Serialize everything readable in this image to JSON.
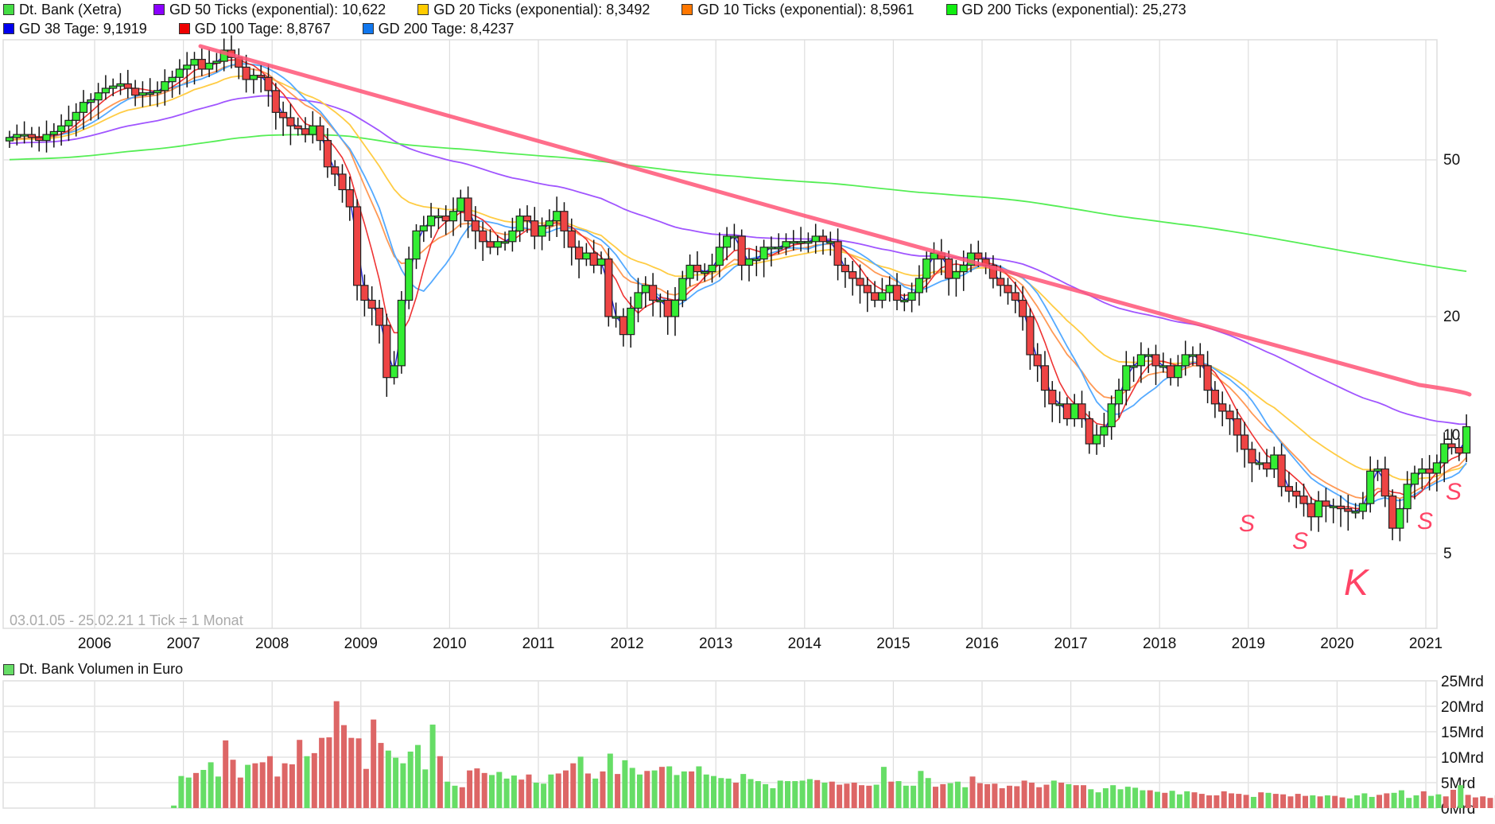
{
  "legend": {
    "row1": [
      {
        "label": "Dt. Bank (Xetra)",
        "color": "#44dd44"
      },
      {
        "label": "GD 50 Ticks (exponential): 10,622",
        "color": "#8a00ff"
      },
      {
        "label": "GD 20 Ticks (exponential): 8,3492",
        "color": "#ffcc00"
      },
      {
        "label": "GD 10 Ticks (exponential): 8,5961",
        "color": "#ff7700"
      },
      {
        "label": "GD 200 Ticks (exponential): 25,273",
        "color": "#11ee11"
      }
    ],
    "row2": [
      {
        "label": "GD 38 Tage: 9,1919",
        "color": "#0000ee"
      },
      {
        "label": "GD 100 Tage: 8,8767",
        "color": "#ee0000"
      },
      {
        "label": "GD 200 Tage: 8,4237",
        "color": "#1177ee"
      }
    ]
  },
  "info": {
    "range": "03.01.05 - 25.02.21",
    "tick": "1 Tick = 1 Monat"
  },
  "volume_legend": {
    "label": "Dt. Bank Volumen in Euro",
    "color": "#66dd66"
  },
  "annotations": {
    "support_marks": [
      "S",
      "S",
      "S",
      "S"
    ],
    "crash_mark": "K",
    "trendline_color": "#ff5577"
  },
  "chart_data": [
    {
      "type": "candlestick",
      "title": "Dt. Bank (Xetra)",
      "subtitle": "03.01.05 - 25.02.21, 1 Tick = 1 Monat",
      "xlabel": "",
      "ylabel": "",
      "yscale": "log",
      "yticks": [
        5,
        10,
        20,
        50
      ],
      "xticks": [
        "2006",
        "2007",
        "2008",
        "2009",
        "2010",
        "2011",
        "2012",
        "2013",
        "2014",
        "2015",
        "2016",
        "2017",
        "2018",
        "2019",
        "2020",
        "2021"
      ],
      "grid": true,
      "legend_position": "top",
      "start": "2005-01",
      "candles_close": [
        57,
        58,
        58,
        57,
        56,
        58,
        59,
        61,
        63,
        66,
        70,
        71,
        74,
        76,
        77,
        78,
        76,
        73,
        74,
        74,
        75,
        79,
        81,
        85,
        87,
        90,
        85,
        88,
        89,
        95,
        91,
        86,
        80,
        82,
        81,
        75,
        66,
        64,
        61,
        60,
        58,
        61,
        56,
        48,
        46,
        42,
        38,
        24,
        22,
        21,
        19,
        14,
        15,
        22,
        28,
        33,
        34,
        36,
        36,
        35,
        37,
        40,
        35,
        33,
        31,
        30,
        31,
        31,
        33,
        36,
        35,
        32,
        34,
        35,
        37,
        33,
        30,
        28,
        29,
        27,
        28,
        20,
        20,
        18,
        21,
        23,
        24,
        22,
        22,
        20,
        22,
        25,
        27,
        26,
        26,
        27,
        30,
        32,
        32,
        27,
        28,
        28,
        30,
        30,
        30,
        31,
        31,
        31,
        31,
        32,
        31,
        31,
        27,
        26,
        25,
        24,
        23,
        22,
        23,
        24,
        22,
        22,
        23,
        25,
        28,
        29,
        28,
        25,
        26,
        27,
        29,
        28,
        27,
        25,
        24,
        23,
        22,
        20,
        16,
        15,
        13,
        12,
        12,
        11,
        12,
        11,
        9.5,
        10,
        10.5,
        12,
        13,
        15,
        15,
        16,
        16,
        15,
        15,
        14,
        15,
        16,
        16,
        15,
        13,
        12,
        11.5,
        11,
        10,
        9.2,
        8.5,
        8.5,
        8.2,
        8.9,
        7.4,
        7.2,
        7.0,
        6.7,
        6.2,
        6.8,
        6.6,
        6.6,
        6.5,
        6.4,
        6.4,
        6.7,
        8.1,
        8.2,
        7.0,
        5.8,
        6.5,
        7.5,
        8.0,
        8.2,
        8.0,
        8.5,
        9.5,
        9.3,
        9.0,
        10.5
      ],
      "series": [
        {
          "name": "GD 50 Ticks (exponential)",
          "last": 10.622,
          "color": "#9944ff"
        },
        {
          "name": "GD 20 Ticks (exponential)",
          "last": 8.3492,
          "color": "#ffcc44"
        },
        {
          "name": "GD 10 Ticks (exponential)",
          "last": 8.5961,
          "color": "#ff8844"
        },
        {
          "name": "GD 200 Ticks (exponential)",
          "last": 25.273,
          "color": "#44ee44"
        },
        {
          "name": "GD 38 Tage",
          "last": 9.1919,
          "color": "#2222dd"
        },
        {
          "name": "GD 100 Tage",
          "last": 8.8767,
          "color": "#ee3333"
        },
        {
          "name": "GD 200 Tage",
          "last": 8.4237,
          "color": "#4499ff"
        }
      ],
      "trendline": {
        "from": [
          "2007-05",
          88
        ],
        "to": [
          "2021-02",
          11.8
        ]
      }
    },
    {
      "type": "bar",
      "title": "Dt. Bank Volumen in Euro",
      "yticks": [
        "0Mrd",
        "5Mrd",
        "10Mrd",
        "15Mrd",
        "20Mrd",
        "25Mrd"
      ],
      "ylim": [
        0,
        25
      ],
      "unit": "Mrd EUR",
      "values": [
        0,
        0,
        0,
        0,
        0,
        0,
        0,
        0,
        0,
        0,
        0,
        0,
        0,
        0,
        0,
        0,
        0,
        0,
        0,
        0,
        0,
        0,
        0,
        0.5,
        6.3,
        6,
        6.9,
        7.5,
        9,
        6.2,
        13.3,
        9.5,
        6,
        8.5,
        8.8,
        9,
        10.2,
        6.2,
        8.8,
        8.6,
        13.4,
        10.2,
        10.8,
        13.8,
        13.9,
        21,
        16.3,
        13.8,
        13.7,
        7.7,
        17.4,
        12.8,
        11.3,
        9.9,
        8.8,
        11.1,
        12.4,
        7.6,
        16.4,
        10.2,
        5.2,
        4.4,
        4.1,
        7.4,
        7.8,
        6.9,
        6.5,
        7.1,
        5.8,
        6.4,
        5.6,
        6.6,
        5,
        4.8,
        6.6,
        6.8,
        7.4,
        8.8,
        10.1,
        6.8,
        5.8,
        7.2,
        10.7,
        6.7,
        9.4,
        7.9,
        6.6,
        7.3,
        7.4,
        8.1,
        8.2,
        6.5,
        7.2,
        7.2,
        8.2,
        6.6,
        6.3,
        5.9,
        5.8,
        5,
        6.7,
        5.7,
        5.3,
        4.7,
        3.9,
        5.4,
        5.3,
        5.3,
        5.4,
        5.7,
        5.5,
        5,
        5.2,
        4.6,
        4.8,
        5,
        4.5,
        4.4,
        4.6,
        8.1,
        5.2,
        5.3,
        4.4,
        4.4,
        7.3,
        5.9,
        4.2,
        4.7,
        4.9,
        5.2,
        4.1,
        6.2,
        4.9,
        4.7,
        4.8,
        3.9,
        4.4,
        4.3,
        5.4,
        5,
        4.1,
        4.6,
        5.4,
        5.0,
        4.7,
        4.5,
        4.5,
        3.7,
        3.1,
        3.9,
        4.5,
        3.7,
        4.2,
        4,
        3.5,
        3.5,
        3.2,
        3.0,
        3.4,
        2.7,
        3.3,
        3.1,
        2.8,
        2.5,
        2.5,
        3.3,
        2.9,
        2.8,
        2.6,
        2.2,
        3.1,
        3.0,
        2.8,
        2.7,
        2.3,
        2.8,
        2.4,
        2.5,
        2.3,
        2.5,
        2.4,
        2.1,
        1.9,
        2.5,
        2.9,
        2.2,
        2.6,
        2.9,
        3.0,
        3.5,
        2.0,
        2.5,
        3.3,
        2.4,
        2.7,
        2.3,
        3.6,
        4.5,
        2.6,
        2.1,
        2.3,
        2.0,
        2.5,
        2.2,
        2.5
      ]
    }
  ]
}
